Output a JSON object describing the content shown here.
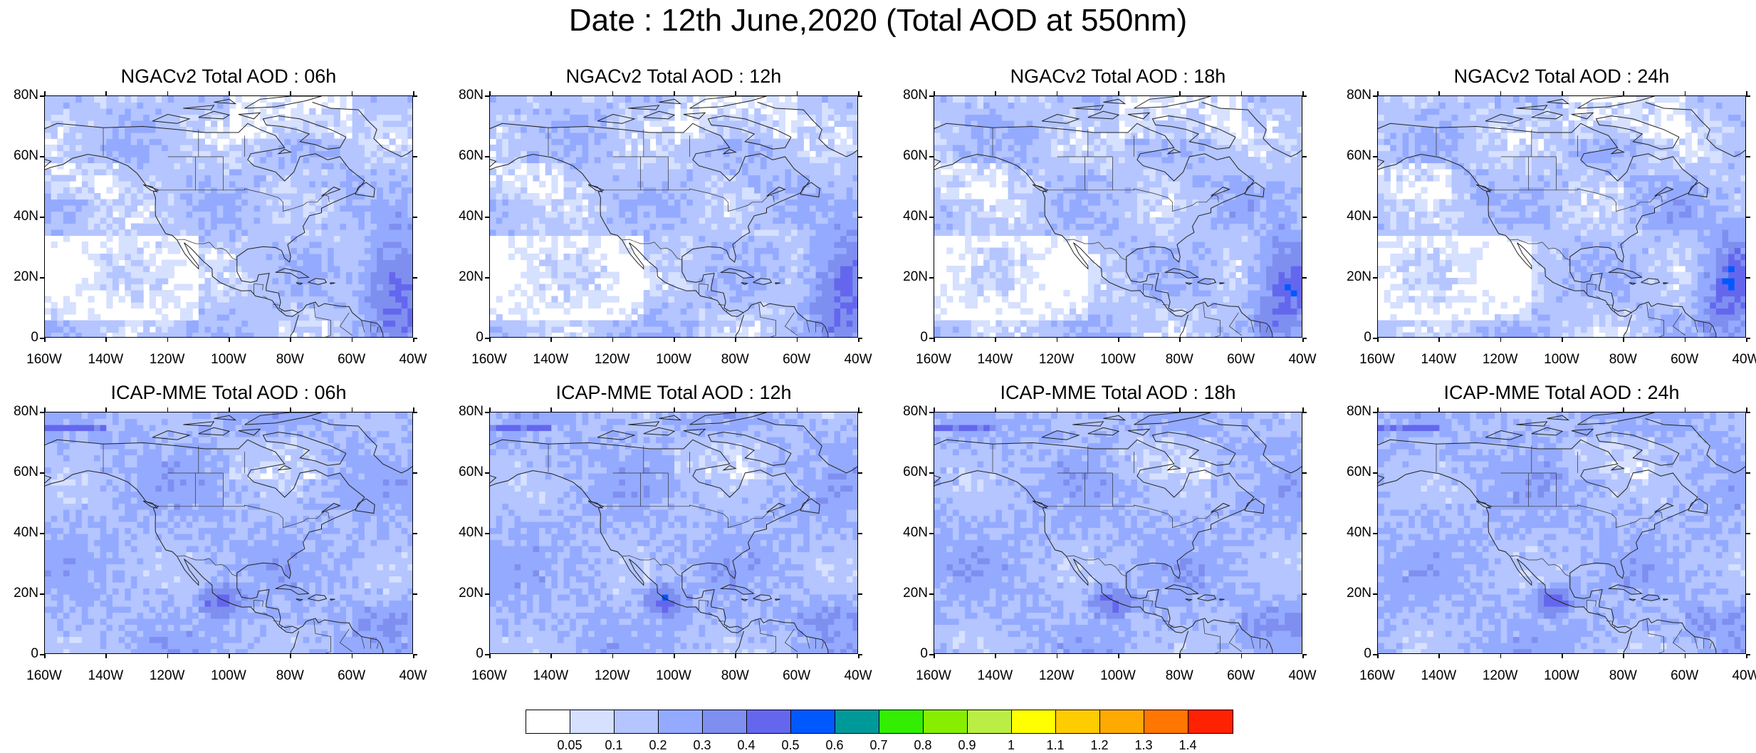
{
  "title": "Date : 12th June,2020 (Total AOD at 550nm)",
  "lat_ticks": [
    "80N",
    "60N",
    "40N",
    "20N",
    "0"
  ],
  "lon_ticks": [
    "160W",
    "140W",
    "120W",
    "100W",
    "80W",
    "60W",
    "40W"
  ],
  "panels": [
    {
      "title": "NGACv2 Total AOD : 06h",
      "model": "ngac",
      "hour": "06"
    },
    {
      "title": "NGACv2 Total AOD : 12h",
      "model": "ngac",
      "hour": "12"
    },
    {
      "title": "NGACv2 Total AOD : 18h",
      "model": "ngac",
      "hour": "18"
    },
    {
      "title": "NGACv2 Total AOD : 24h",
      "model": "ngac",
      "hour": "24"
    },
    {
      "title": "ICAP-MME Total AOD : 06h",
      "model": "icap",
      "hour": "06"
    },
    {
      "title": "ICAP-MME Total AOD : 12h",
      "model": "icap",
      "hour": "12"
    },
    {
      "title": "ICAP-MME Total AOD : 18h",
      "model": "icap",
      "hour": "18"
    },
    {
      "title": "ICAP-MME Total AOD : 24h",
      "model": "icap",
      "hour": "24"
    }
  ],
  "colorbar": {
    "colors": [
      "#ffffff",
      "#d6e0ff",
      "#b4c5ff",
      "#94aaff",
      "#7f8ff0",
      "#6467ee",
      "#0059ff",
      "#009999",
      "#33ee00",
      "#88ee00",
      "#bbee44",
      "#ffff00",
      "#ffcc00",
      "#ffaa00",
      "#ff7700",
      "#ff2200"
    ],
    "labels": [
      "0.05",
      "0.1",
      "0.2",
      "0.3",
      "0.4",
      "0.5",
      "0.6",
      "0.7",
      "0.8",
      "0.9",
      "1",
      "1.1",
      "1.2",
      "1.3",
      "1.4"
    ]
  }
}
